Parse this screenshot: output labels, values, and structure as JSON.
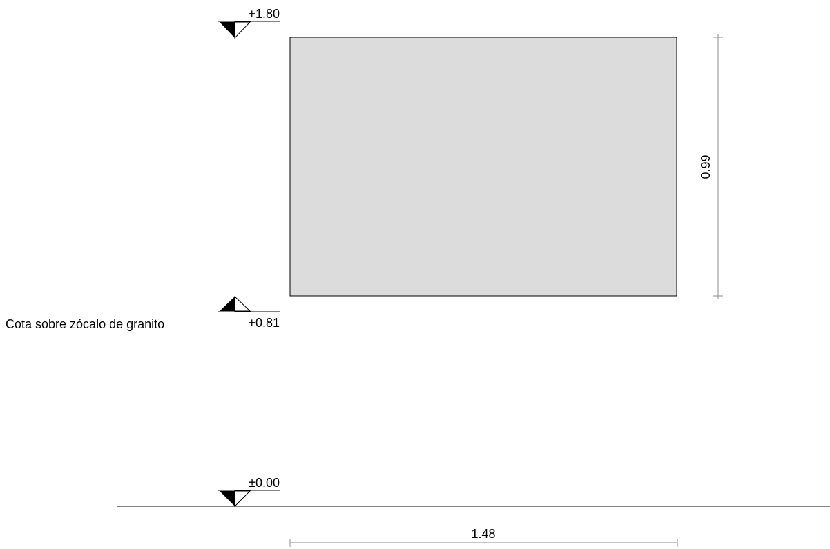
{
  "drawing": {
    "levels": {
      "top": {
        "label": "+1.80"
      },
      "sill": {
        "label": "+0.81",
        "note": "Cota sobre zócalo de granito"
      },
      "ground": {
        "label": "±0.00"
      }
    },
    "window": {
      "width_label": "1.48",
      "height_label": "0.99",
      "fill_color": "#dcdcdc",
      "stroke_color": "#000000"
    },
    "dimension_color": "#8c8c8c",
    "ground_line_color": "#000000"
  }
}
